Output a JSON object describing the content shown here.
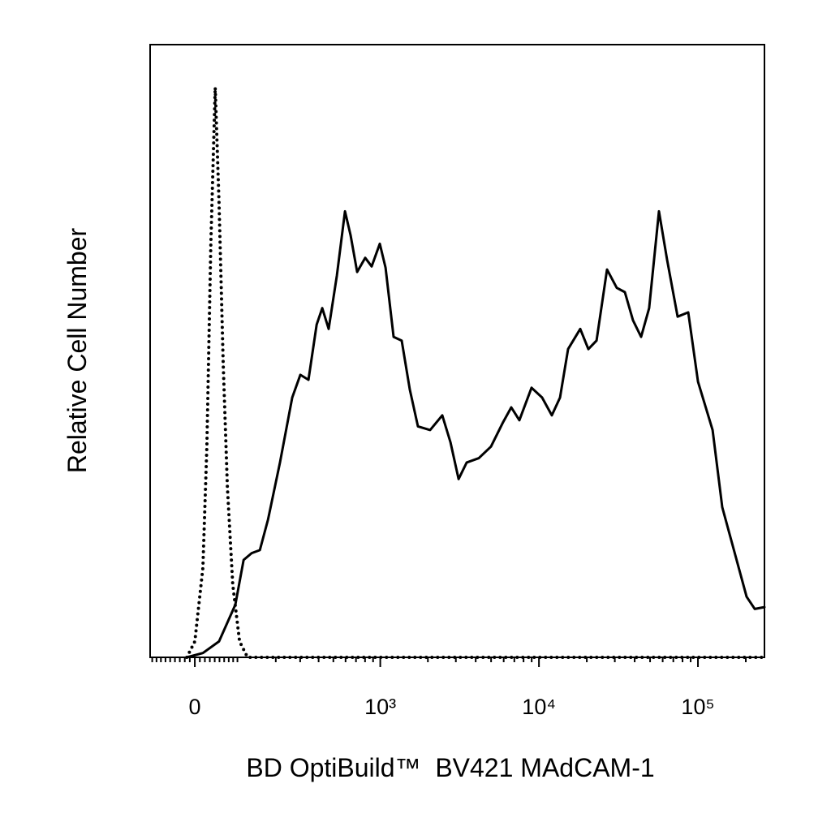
{
  "chart_data": {
    "type": "line",
    "xlabel": "BD OptiBuild™  BV421 MAdCAM-1",
    "ylabel": "Relative Cell Number",
    "xscale": "arcsinh",
    "xscale_cofactor": 137,
    "xlim": [
      -95,
      262000
    ],
    "ylim": [
      0,
      100
    ],
    "xticks": [
      0,
      {
        "value": 1000,
        "label": "10³"
      },
      {
        "value": 10000,
        "label": "10⁴"
      },
      {
        "value": 100000,
        "label": "10⁵"
      }
    ],
    "xminorticks": [
      -90,
      -80,
      -70,
      -60,
      -50,
      -40,
      -30,
      -20,
      -10,
      10,
      20,
      30,
      40,
      50,
      60,
      70,
      80,
      90,
      200,
      300,
      400,
      500,
      600,
      700,
      800,
      900,
      2000,
      3000,
      4000,
      5000,
      6000,
      7000,
      8000,
      9000,
      20000,
      30000,
      40000,
      50000,
      60000,
      70000,
      80000,
      90000,
      200000
    ],
    "series": [
      {
        "color": "#000000",
        "style": "solid",
        "x": [
          -16,
          16,
          49,
          85,
          105,
          126,
          149,
          174,
          215,
          264,
          301,
          342,
          388,
          423,
          466,
          527,
          595,
          646,
          712,
          802,
          882,
          993,
          1080,
          1215,
          1367,
          1539,
          1731,
          2066,
          2465,
          2774,
          3120,
          3511,
          4186,
          4992,
          5953,
          6699,
          7528,
          8987,
          10467,
          12056,
          13563,
          15248,
          18194,
          20454,
          23016,
          26797,
          30852,
          34716,
          39045,
          43922,
          49347,
          56869,
          63952,
          74501,
          86858,
          100079,
          123574,
          142275,
          169606,
          202418,
          227694,
          262000
        ],
        "values": [
          0,
          0.7,
          2.6,
          8.6,
          15.9,
          17.0,
          17.5,
          22.5,
          31.8,
          42.4,
          46.1,
          45.3,
          54.3,
          57.0,
          53.6,
          62.3,
          72.8,
          68.9,
          62.9,
          65.2,
          63.8,
          67.5,
          63.6,
          52.3,
          51.7,
          43.7,
          37.7,
          37.1,
          39.5,
          35.1,
          29.1,
          31.8,
          32.5,
          34.4,
          38.4,
          40.8,
          38.7,
          44.0,
          42.4,
          39.5,
          42.4,
          50.3,
          53.6,
          50.3,
          51.7,
          63.3,
          60.3,
          59.6,
          55.0,
          52.3,
          57.0,
          72.8,
          64.9,
          55.6,
          56.3,
          45.0,
          37.1,
          24.5,
          17.2,
          9.9,
          7.9,
          8.2
        ]
      },
      {
        "color": "#000000",
        "style": "dotted",
        "x": [
          -16,
          0,
          16,
          24,
          32,
          41,
          49,
          58,
          67,
          79,
          95,
          115,
          262000
        ],
        "values": [
          0,
          2.6,
          14.6,
          34.4,
          67.5,
          93.0,
          74.2,
          47.7,
          27.8,
          11.9,
          2.6,
          0,
          0
        ]
      }
    ]
  }
}
